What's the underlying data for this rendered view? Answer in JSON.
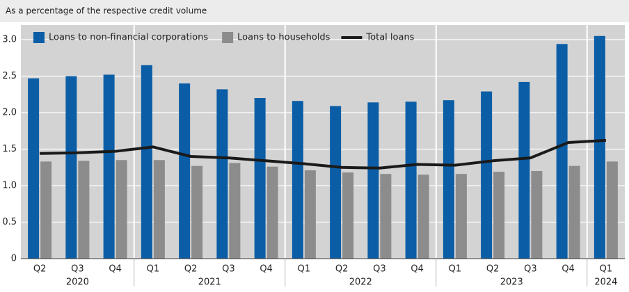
{
  "chart_data": {
    "type": "bar",
    "subtitle": "As a percentage of the respective credit volume",
    "categories": [
      "Q2",
      "Q3",
      "Q4",
      "Q1",
      "Q2",
      "Q3",
      "Q4",
      "Q1",
      "Q2",
      "Q3",
      "Q4",
      "Q1",
      "Q2",
      "Q3",
      "Q4",
      "Q1"
    ],
    "category_groups": [
      "2020",
      null,
      null,
      "2021",
      null,
      null,
      null,
      "2022",
      null,
      null,
      null,
      "2023",
      null,
      null,
      null,
      "2024"
    ],
    "series": [
      {
        "name": "Loans to non-financial corporations",
        "type": "bar",
        "color": "#0b5ea6",
        "values": [
          2.47,
          2.5,
          2.52,
          2.65,
          2.4,
          2.32,
          2.2,
          2.16,
          2.09,
          2.14,
          2.15,
          2.17,
          2.29,
          2.42,
          2.94,
          3.05
        ]
      },
      {
        "name": "Loans to households",
        "type": "bar",
        "color": "#8c8c8c",
        "values": [
          1.33,
          1.34,
          1.35,
          1.35,
          1.27,
          1.31,
          1.26,
          1.21,
          1.18,
          1.16,
          1.15,
          1.16,
          1.19,
          1.2,
          1.27,
          1.33
        ]
      },
      {
        "name": "Total loans",
        "type": "line",
        "color": "#1a1a1a",
        "values": [
          1.44,
          1.45,
          1.47,
          1.53,
          1.4,
          1.38,
          1.34,
          1.3,
          1.25,
          1.24,
          1.29,
          1.28,
          1.34,
          1.38,
          1.59,
          1.62
        ]
      }
    ],
    "ylim": [
      0,
      3.2
    ],
    "yticks": [
      0,
      0.5,
      {
        "value": 1,
        "label": "1.0"
      },
      1.5,
      {
        "value": 2,
        "label": "2.0"
      },
      2.5,
      {
        "value": 3,
        "label": "3.0"
      }
    ],
    "grid": true
  }
}
